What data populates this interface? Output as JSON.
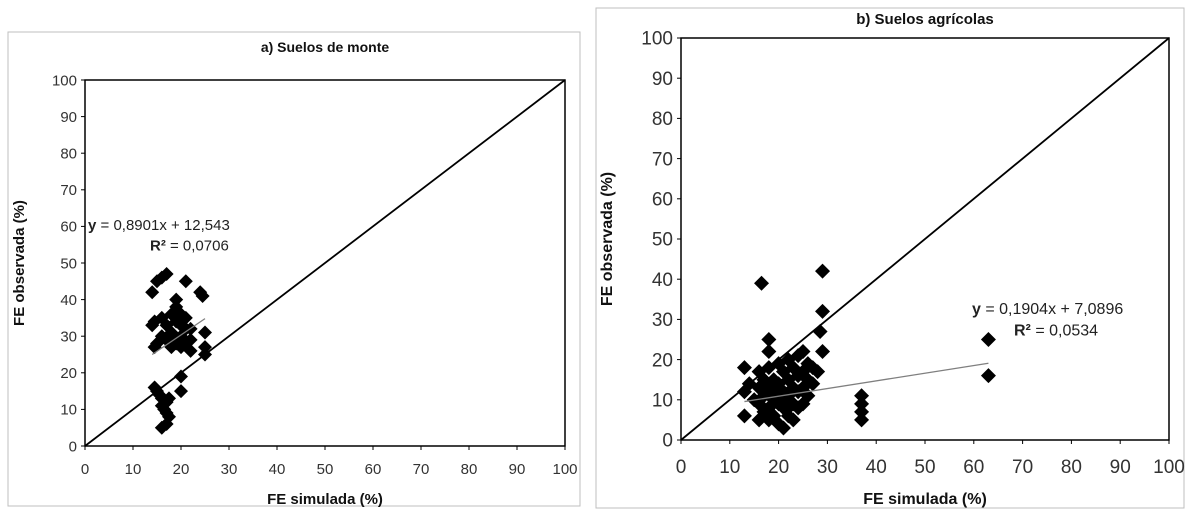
{
  "chart_data": [
    {
      "type": "scatter",
      "title": "a) Suelos de monte",
      "xlabel": "FE simulada (%)",
      "ylabel": "FE observada (%)",
      "xlim": [
        0,
        100
      ],
      "ylim": [
        0,
        100
      ],
      "xticks": [
        "0",
        "10",
        "20",
        "30",
        "40",
        "50",
        "60",
        "70",
        "80",
        "90",
        "100"
      ],
      "yticks": [
        "0",
        "10",
        "20",
        "30",
        "40",
        "50",
        "60",
        "70",
        "80",
        "90",
        "100"
      ],
      "equation_y": "y",
      "equation_rest": " = 0,8901x + 12,543",
      "r2_label": "R²",
      "r2_rest": " = 0,0706",
      "regression": {
        "slope": 0.8901,
        "intercept": 12.543,
        "x_range": [
          14,
          25
        ]
      },
      "one_to_one_line": true,
      "marker_color": "#000000",
      "points": [
        [
          14,
          42
        ],
        [
          14.5,
          34
        ],
        [
          15,
          45
        ],
        [
          16,
          46
        ],
        [
          17,
          47
        ],
        [
          14,
          33
        ],
        [
          14.5,
          27
        ],
        [
          15,
          28
        ],
        [
          16,
          30
        ],
        [
          17,
          29
        ],
        [
          16,
          35
        ],
        [
          17,
          33
        ],
        [
          18,
          36
        ],
        [
          18,
          31
        ],
        [
          19,
          40
        ],
        [
          19,
          34
        ],
        [
          20,
          33
        ],
        [
          20,
          30
        ],
        [
          21,
          35
        ],
        [
          21,
          32
        ],
        [
          19,
          28
        ],
        [
          20,
          27
        ],
        [
          22,
          32
        ],
        [
          22,
          29
        ],
        [
          21,
          45
        ],
        [
          24,
          42
        ],
        [
          24.5,
          41
        ],
        [
          25,
          31
        ],
        [
          25,
          27
        ],
        [
          25,
          25
        ],
        [
          22,
          26
        ],
        [
          21,
          28
        ],
        [
          18,
          27
        ],
        [
          19,
          38
        ],
        [
          20,
          36
        ],
        [
          14.5,
          16
        ],
        [
          15,
          15
        ],
        [
          15.5,
          14
        ],
        [
          16,
          13
        ],
        [
          16,
          11
        ],
        [
          16.5,
          10
        ],
        [
          17,
          12
        ],
        [
          17.5,
          13
        ],
        [
          17,
          9
        ],
        [
          16,
          5
        ],
        [
          17,
          6
        ],
        [
          17.5,
          8
        ],
        [
          20,
          19
        ],
        [
          20,
          15
        ],
        [
          19,
          29
        ]
      ]
    },
    {
      "type": "scatter",
      "title": "b) Suelos agrícolas",
      "xlabel": "FE simulada (%)",
      "ylabel": "FE observada (%)",
      "xlim": [
        0,
        100
      ],
      "ylim": [
        0,
        100
      ],
      "xticks": [
        "0",
        "10",
        "20",
        "30",
        "40",
        "50",
        "60",
        "70",
        "80",
        "90",
        "100"
      ],
      "yticks": [
        "0",
        "10",
        "20",
        "30",
        "40",
        "50",
        "60",
        "70",
        "80",
        "90",
        "100"
      ],
      "equation_y": "y",
      "equation_rest": " = 0,1904x + 7,0896",
      "r2_label": "R²",
      "r2_rest": " = 0,0534",
      "regression": {
        "slope": 0.1904,
        "intercept": 7.0896,
        "x_range": [
          13,
          63
        ]
      },
      "one_to_one_line": true,
      "marker_color": "#000000",
      "points": [
        [
          16.5,
          39
        ],
        [
          29,
          42
        ],
        [
          29,
          32
        ],
        [
          28.5,
          27
        ],
        [
          29,
          22
        ],
        [
          28,
          17
        ],
        [
          18,
          25
        ],
        [
          18,
          22
        ],
        [
          13,
          18
        ],
        [
          13,
          12
        ],
        [
          13,
          6
        ],
        [
          16,
          17
        ],
        [
          16,
          13
        ],
        [
          16,
          9
        ],
        [
          16,
          5
        ],
        [
          17,
          15
        ],
        [
          17,
          11
        ],
        [
          17,
          7
        ],
        [
          18,
          18
        ],
        [
          18,
          13
        ],
        [
          18,
          8
        ],
        [
          18,
          5
        ],
        [
          19,
          15
        ],
        [
          19,
          10
        ],
        [
          19,
          6
        ],
        [
          20,
          19
        ],
        [
          20,
          14
        ],
        [
          20,
          9
        ],
        [
          20,
          4
        ],
        [
          21,
          17
        ],
        [
          21,
          12
        ],
        [
          21,
          8
        ],
        [
          21,
          3
        ],
        [
          22,
          20
        ],
        [
          22,
          15
        ],
        [
          22,
          11
        ],
        [
          22,
          6
        ],
        [
          23,
          18
        ],
        [
          23,
          13
        ],
        [
          23,
          9
        ],
        [
          23,
          5
        ],
        [
          24,
          21
        ],
        [
          24,
          16
        ],
        [
          24,
          12
        ],
        [
          24,
          8
        ],
        [
          25,
          22
        ],
        [
          25,
          17
        ],
        [
          25,
          13
        ],
        [
          25,
          9
        ],
        [
          26,
          19
        ],
        [
          26,
          15
        ],
        [
          26,
          11
        ],
        [
          27,
          18
        ],
        [
          27,
          14
        ],
        [
          20,
          12
        ],
        [
          21,
          10
        ],
        [
          22,
          8
        ],
        [
          19,
          12
        ],
        [
          15,
          10
        ],
        [
          14,
          14
        ],
        [
          37,
          11
        ],
        [
          37,
          9
        ],
        [
          37,
          7
        ],
        [
          37,
          5
        ],
        [
          63,
          25
        ],
        [
          63,
          16
        ]
      ]
    }
  ]
}
